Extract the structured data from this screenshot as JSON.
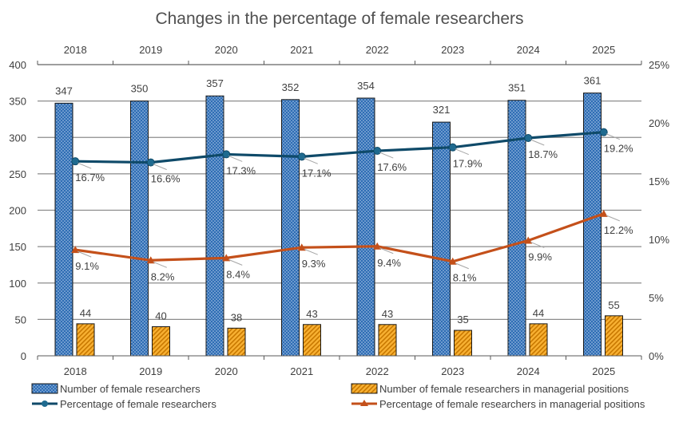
{
  "chart_data": {
    "type": "bar",
    "title": "Changes in the percentage of female researchers",
    "categories": [
      "2018",
      "2019",
      "2020",
      "2021",
      "2022",
      "2023",
      "2024",
      "2025"
    ],
    "ylim": [
      0,
      400
    ],
    "yticks": [
      0,
      50,
      100,
      150,
      200,
      250,
      300,
      350,
      400
    ],
    "y2lim": [
      0,
      25
    ],
    "y2ticks": [
      0,
      5,
      10,
      15,
      20,
      25
    ],
    "y2_unit": "%",
    "grid": true,
    "legend_placement": "bottom",
    "series": [
      {
        "name": "Number of female researchers",
        "type": "bar",
        "axis": "left",
        "values": [
          347,
          350,
          357,
          352,
          354,
          321,
          351,
          361
        ],
        "color": "#2e6db4"
      },
      {
        "name": "Number of female researchers in managerial positions",
        "type": "bar",
        "axis": "left",
        "values": [
          44,
          40,
          38,
          43,
          43,
          35,
          44,
          55
        ],
        "color": "#f5a623"
      },
      {
        "name": "Percentage of female researchers",
        "type": "line",
        "axis": "right",
        "marker": "circle",
        "values": [
          16.7,
          16.6,
          17.3,
          17.1,
          17.6,
          17.9,
          18.7,
          19.2
        ],
        "color": "#0f4a69"
      },
      {
        "name": "Percentage of female researchers in managerial positions",
        "type": "line",
        "axis": "right",
        "marker": "triangle",
        "values": [
          9.1,
          8.2,
          8.4,
          9.3,
          9.4,
          8.1,
          9.9,
          12.2
        ],
        "color": "#c4501a"
      }
    ]
  }
}
